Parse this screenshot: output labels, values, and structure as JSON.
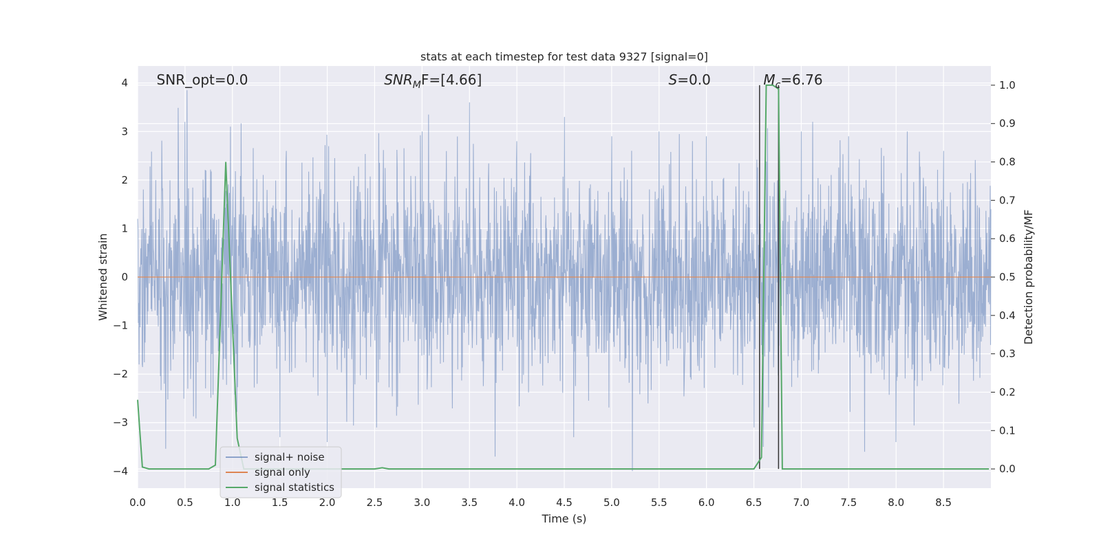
{
  "chart_data": {
    "type": "line",
    "title": "stats at each timestep for test data 9327 [signal=0]",
    "xlabel": "Time (s)",
    "ylabel": "Whitened strain",
    "y2label": "Detection probability/MF",
    "xlim": [
      0.0,
      9.0
    ],
    "ylim": [
      -4.35,
      4.35
    ],
    "y2lim": [
      -0.05,
      1.05
    ],
    "xticks": [
      "0.0",
      "0.5",
      "1.0",
      "1.5",
      "2.0",
      "2.5",
      "3.0",
      "3.5",
      "4.0",
      "4.5",
      "5.0",
      "5.5",
      "6.0",
      "6.5",
      "7.0",
      "7.5",
      "8.0",
      "8.5"
    ],
    "yticks": [
      "−4",
      "−3",
      "−2",
      "−1",
      "0",
      "1",
      "2",
      "3",
      "4"
    ],
    "y2ticks": [
      "0.0",
      "0.1",
      "0.2",
      "0.3",
      "0.4",
      "0.5",
      "0.6",
      "0.7",
      "0.8",
      "0.9",
      "1.0"
    ],
    "grid": true,
    "legend_location": "lower left",
    "annotations": [
      {
        "prefix": "SNR_opt",
        "sub": "",
        "suffix": "=0.0",
        "x": 0.2
      },
      {
        "prefix": "SNR",
        "sub": "M",
        "suffix": "F=[4.66]",
        "x": 2.6
      },
      {
        "prefix": "S",
        "sub": "",
        "suffix": "=0.0",
        "x": 5.6
      },
      {
        "prefix": "M",
        "sub": "c",
        "suffix": "=6.76",
        "x": 6.6
      }
    ],
    "series": [
      {
        "name": "signal+ noise",
        "color": "#4c72b0",
        "axis": "left",
        "description_values": "dense whitened noise trace, amplitude mostly within ±2, extremes near 4.0 at 2.52 s and −4.0 at 5.22 s",
        "x": [
          0.0,
          0.5,
          0.52,
          0.98,
          1.5,
          1.57,
          2.0,
          2.52,
          2.52,
          3.0,
          3.07,
          3.5,
          3.77,
          4.0,
          4.5,
          4.6,
          5.0,
          5.22,
          5.5,
          6.0,
          6.5,
          6.6,
          7.0,
          7.12,
          7.5,
          8.0,
          8.12,
          8.5,
          9.0
        ],
        "y": [
          1.2,
          3.2,
          3.85,
          3.1,
          -3.3,
          2.6,
          -3.4,
          4.0,
          -3.1,
          3.0,
          3.35,
          3.6,
          -3.7,
          2.8,
          3.3,
          -3.3,
          2.9,
          -4.0,
          3.0,
          2.9,
          -3.1,
          -3.5,
          3.0,
          3.2,
          2.9,
          -3.4,
          3.0,
          2.6,
          1.4
        ]
      },
      {
        "name": "signal only",
        "color": "#dd8452",
        "axis": "left",
        "x": [
          0.0,
          9.0
        ],
        "y": [
          0.0,
          0.0
        ]
      },
      {
        "name": "signal statistics",
        "color": "#55a868",
        "axis": "right",
        "x": [
          0.0,
          0.05,
          0.12,
          0.5,
          0.75,
          0.82,
          0.93,
          1.05,
          1.12,
          2.5,
          2.58,
          2.65,
          6.5,
          6.58,
          6.63,
          6.7,
          6.76,
          6.8,
          6.85,
          6.95,
          8.98
        ],
        "y": [
          0.18,
          0.005,
          0.0,
          0.0,
          0.0,
          0.01,
          0.8,
          0.08,
          0.0,
          0.0,
          0.003,
          0.0,
          0.0,
          0.03,
          1.0,
          1.0,
          0.99,
          0.0,
          0.0,
          0.0,
          0.0
        ]
      }
    ],
    "vertical_lines": [
      6.56,
      6.76
    ]
  }
}
